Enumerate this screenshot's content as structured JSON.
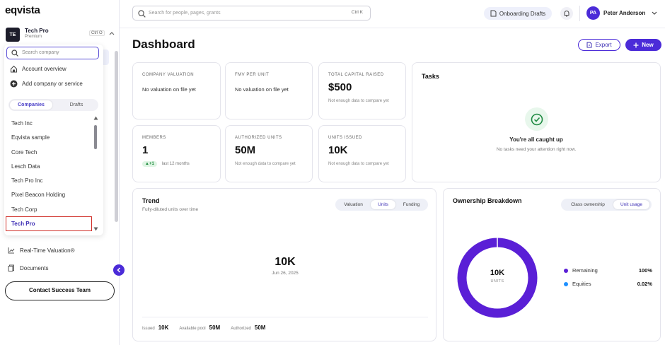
{
  "app": {
    "logo": "eqvista"
  },
  "org": {
    "initials": "TE",
    "name": "Tech Pro",
    "plan": "Premium",
    "shortcut": "Ctrl O"
  },
  "dropdown": {
    "search_placeholder": "Search company",
    "account_overview": "Account overview",
    "add_company": "Add company or service",
    "tabs": [
      "Companies",
      "Drafts"
    ],
    "companies": [
      "Tech Inc",
      "Eqvista sample",
      "Core Tech",
      "Lesch Data",
      "Tech Pro Inc",
      "Pixel Beacon Holding",
      "Tech Corp",
      "Tech Pro"
    ]
  },
  "nav": {
    "realtime": "Real-Time Valuation®",
    "documents": "Documents",
    "contact": "Contact Success Team"
  },
  "topbar": {
    "search_placeholder": "Search for people, pages, grants",
    "search_shortcut": "Ctrl K",
    "onboarding": "Onboarding Drafts",
    "user_initials": "PA",
    "user_name": "Peter Anderson"
  },
  "page": {
    "title": "Dashboard",
    "export": "Export",
    "new": "New"
  },
  "kpis": {
    "valuation": {
      "label": "COMPANY VALUATION",
      "text": "No valuation on file yet"
    },
    "fmv": {
      "label": "FMV PER UNIT",
      "text": "No valuation on file yet"
    },
    "capital": {
      "label": "TOTAL CAPITAL RAISED",
      "value": "$500",
      "note": "Not enough data to compare yet"
    },
    "members": {
      "label": "MEMBERS",
      "value": "1",
      "delta": "▲+1",
      "period": "last 12 months"
    },
    "authorized": {
      "label": "AUTHORIZED UNITS",
      "value": "50M",
      "note": "Not enough data to compare yet"
    },
    "issued": {
      "label": "UNITS ISSUED",
      "value": "10K",
      "note": "Not enough data to compare yet"
    }
  },
  "tasks": {
    "title": "Tasks",
    "headline": "You're all caught up",
    "sub": "No tasks need your attention right now."
  },
  "trend": {
    "title": "Trend",
    "subtitle": "Fully-diluted units over time",
    "tabs": [
      "Valuation",
      "Units",
      "Funding"
    ],
    "value": "10K",
    "date": "Jun 26, 2025",
    "stats": [
      {
        "label": "Issued",
        "value": "10K"
      },
      {
        "label": "Available pool",
        "value": "50M"
      },
      {
        "label": "Authorized",
        "value": "50M"
      }
    ]
  },
  "ownership": {
    "title": "Ownership Breakdown",
    "tabs": [
      "Class ownership",
      "Unit usage"
    ],
    "center_value": "10K",
    "center_label": "UNITS",
    "legend": [
      {
        "name": "Remaining",
        "pct": "100%",
        "color": "#5a1fd6"
      },
      {
        "name": "Equities",
        "pct": "0.02%",
        "color": "#1e90ff"
      }
    ]
  },
  "colors": {
    "accent": "#4b2bd8",
    "ring": "#5a1fd6"
  }
}
